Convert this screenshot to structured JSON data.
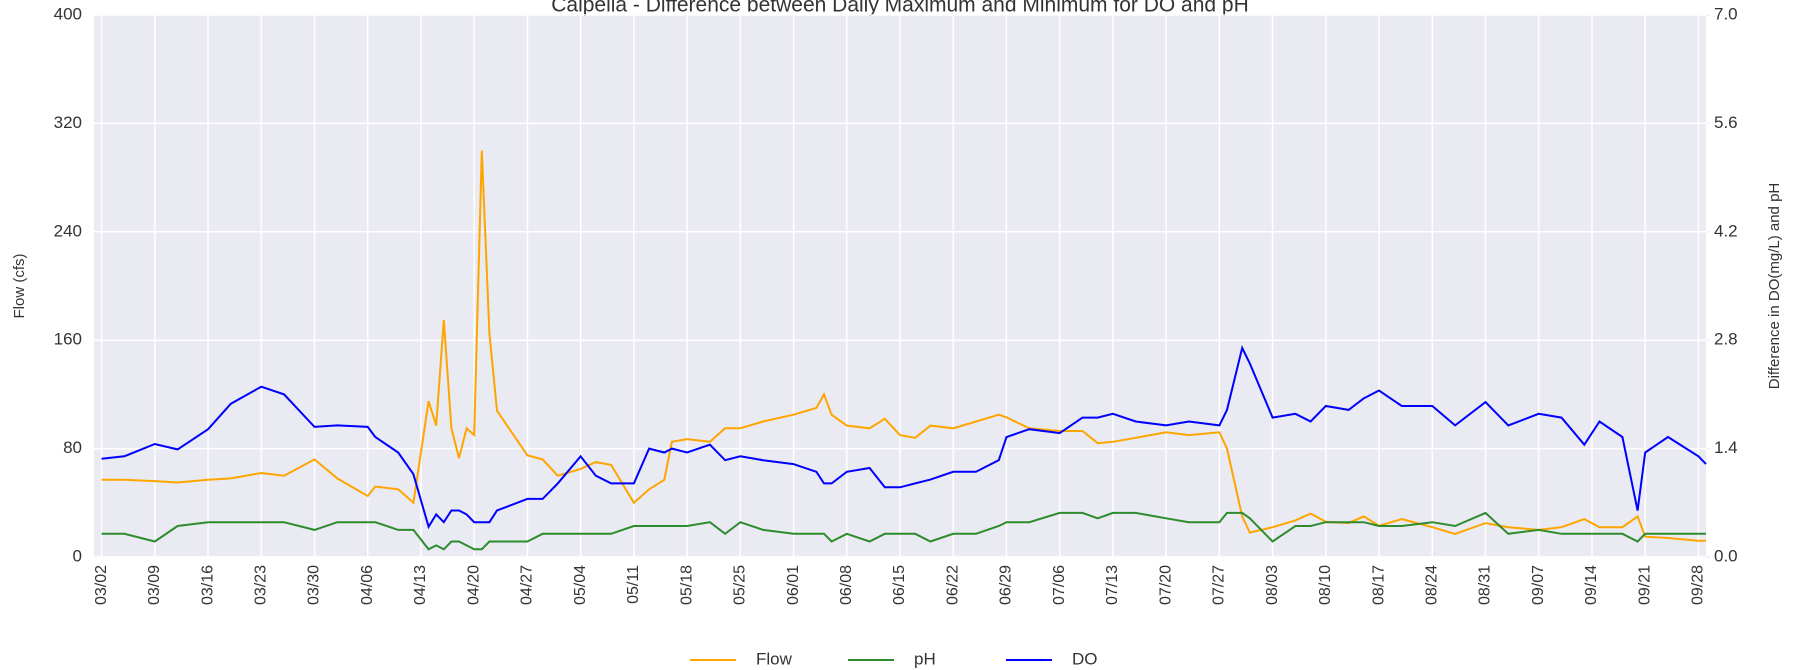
{
  "chart_data": {
    "type": "line",
    "title": "Calpella - Difference between Daily Maximum and Minimum for DO and pH",
    "y_label": "Flow (cfs)",
    "y2_label": "Difference in DO(mg/L) and pH",
    "x": [
      "03/02",
      "03/05",
      "03/09",
      "03/12",
      "03/16",
      "03/19",
      "03/23",
      "03/26",
      "03/30",
      "04/02",
      "04/06",
      "04/07",
      "04/10",
      "04/12",
      "04/14",
      "04/15",
      "04/16",
      "04/17",
      "04/18",
      "04/19",
      "04/20",
      "04/21",
      "04/22",
      "04/23",
      "04/27",
      "04/29",
      "05/01",
      "05/04",
      "05/06",
      "05/08",
      "05/11",
      "05/13",
      "05/15",
      "05/16",
      "05/18",
      "05/21",
      "05/23",
      "05/25",
      "05/28",
      "06/01",
      "06/04",
      "06/05",
      "06/06",
      "06/08",
      "06/11",
      "06/13",
      "06/15",
      "06/17",
      "06/19",
      "06/22",
      "06/25",
      "06/28",
      "06/29",
      "07/02",
      "07/06",
      "07/09",
      "07/11",
      "07/13",
      "07/16",
      "07/20",
      "07/23",
      "07/27",
      "07/28",
      "07/30",
      "07/31",
      "08/03",
      "08/06",
      "08/08",
      "08/10",
      "08/13",
      "08/15",
      "08/17",
      "08/20",
      "08/24",
      "08/27",
      "08/31",
      "09/03",
      "09/07",
      "09/10",
      "09/13",
      "09/15",
      "09/18",
      "09/20",
      "09/21",
      "09/24",
      "09/28",
      "09/29"
    ],
    "series": [
      {
        "name": "Flow",
        "color": "#ffa500",
        "values": [
          57,
          57,
          56,
          55,
          57,
          58,
          62,
          60,
          72,
          58,
          45,
          52,
          50,
          40,
          115,
          97,
          175,
          95,
          73,
          95,
          90,
          300,
          165,
          108,
          75,
          72,
          60,
          65,
          70,
          68,
          40,
          50,
          57,
          85,
          87,
          85,
          95,
          95,
          100,
          105,
          110,
          120,
          105,
          97,
          95,
          102,
          90,
          88,
          97,
          95,
          100,
          105,
          103,
          95,
          93,
          93,
          84,
          85,
          88,
          92,
          90,
          92,
          80,
          30,
          18,
          22,
          27,
          32,
          26,
          25,
          30,
          23,
          28,
          22,
          17,
          25,
          22,
          20,
          22,
          28,
          22,
          22,
          30,
          15,
          14,
          12,
          12
        ]
      },
      {
        "name": "pH",
        "color": "#2e8b2e",
        "axis": "y2",
        "values": [
          0.3,
          0.3,
          0.2,
          0.4,
          0.45,
          0.45,
          0.45,
          0.45,
          0.35,
          0.45,
          0.45,
          0.45,
          0.35,
          0.35,
          0.1,
          0.15,
          0.1,
          0.2,
          0.2,
          0.15,
          0.1,
          0.1,
          0.2,
          0.2,
          0.2,
          0.3,
          0.3,
          0.3,
          0.3,
          0.3,
          0.4,
          0.4,
          0.4,
          0.4,
          0.4,
          0.45,
          0.3,
          0.45,
          0.35,
          0.3,
          0.3,
          0.3,
          0.2,
          0.3,
          0.2,
          0.3,
          0.3,
          0.3,
          0.2,
          0.3,
          0.3,
          0.4,
          0.45,
          0.45,
          0.57,
          0.57,
          0.5,
          0.57,
          0.57,
          0.5,
          0.45,
          0.45,
          0.57,
          0.57,
          0.5,
          0.2,
          0.4,
          0.4,
          0.45,
          0.45,
          0.45,
          0.4,
          0.4,
          0.45,
          0.4,
          0.57,
          0.3,
          0.35,
          0.3,
          0.3,
          0.3,
          0.3,
          0.2,
          0.3,
          0.3,
          0.3,
          0.3
        ]
      },
      {
        "name": "DO",
        "color": "#0000ff",
        "axis": "y2",
        "values": [
          1.27,
          1.3,
          1.46,
          1.39,
          1.65,
          1.98,
          2.2,
          2.1,
          1.68,
          1.7,
          1.68,
          1.55,
          1.35,
          1.07,
          0.39,
          0.55,
          0.45,
          0.6,
          0.6,
          0.55,
          0.45,
          0.45,
          0.45,
          0.6,
          0.75,
          0.75,
          0.95,
          1.3,
          1.05,
          0.95,
          0.95,
          1.4,
          1.35,
          1.4,
          1.35,
          1.45,
          1.25,
          1.3,
          1.25,
          1.2,
          1.1,
          0.95,
          0.95,
          1.1,
          1.15,
          0.9,
          0.9,
          0.95,
          1,
          1.1,
          1.1,
          1.25,
          1.55,
          1.65,
          1.6,
          1.8,
          1.8,
          1.85,
          1.75,
          1.7,
          1.75,
          1.7,
          1.9,
          2.7,
          2.5,
          1.8,
          1.85,
          1.75,
          1.95,
          1.9,
          2.05,
          2.15,
          1.95,
          1.95,
          1.7,
          2,
          1.7,
          1.85,
          1.8,
          1.45,
          1.75,
          1.55,
          0.6,
          1.35,
          1.55,
          1.3,
          1.2
        ]
      }
    ],
    "xlim": [
      "03/01",
      "09/29"
    ],
    "xticks": [
      "03/02",
      "03/09",
      "03/16",
      "03/23",
      "03/30",
      "04/06",
      "04/13",
      "04/20",
      "04/27",
      "05/04",
      "05/11",
      "05/18",
      "05/25",
      "06/01",
      "06/08",
      "06/15",
      "06/22",
      "06/29",
      "07/06",
      "07/13",
      "07/20",
      "07/27",
      "08/03",
      "08/10",
      "08/17",
      "08/24",
      "08/31",
      "09/07",
      "09/14",
      "09/21",
      "09/28"
    ],
    "ylim": [
      0,
      400
    ],
    "yticks": [
      0,
      80,
      160,
      240,
      320,
      400
    ],
    "y2lim": [
      0,
      7
    ],
    "y2ticks": [
      {
        "value": 0,
        "label": "0.0"
      },
      1.4,
      2.8,
      4.2,
      5.6,
      {
        "value": 7,
        "label": "7.0"
      }
    ],
    "grid": true,
    "legend": "bottom"
  }
}
